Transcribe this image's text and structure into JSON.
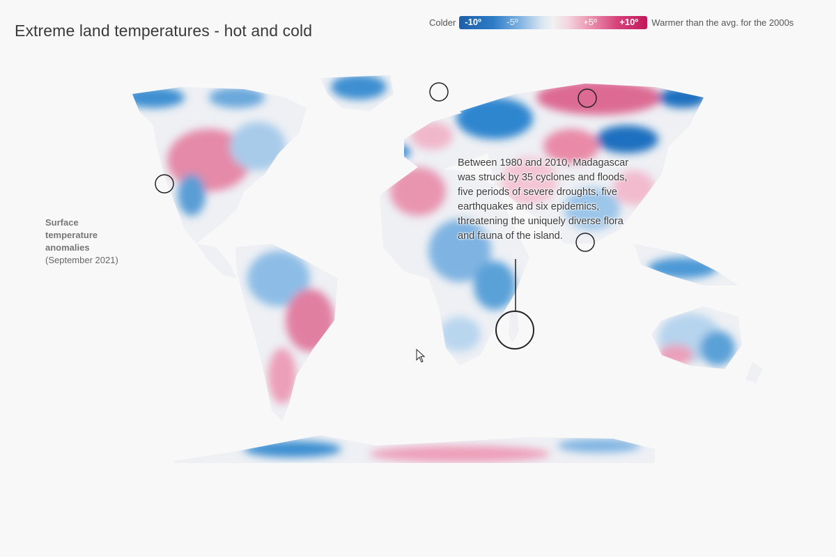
{
  "title": "Extreme land temperatures - hot and cold",
  "legend": {
    "colder_label": "Colder",
    "warmer_label": "Warmer than the avg. for the 2000s",
    "ticks": [
      "-10º",
      "-5º",
      "+5º",
      "+10º"
    ],
    "colors": {
      "cold_extreme": "#1f5fa8",
      "cold": "#2c7bc7",
      "neutral": "#f1f1f1",
      "warm": "#ea91ae",
      "warm_extreme": "#c2185b"
    }
  },
  "side_label": {
    "bold": "Surface temperature anomalies",
    "date": "(September 2021)"
  },
  "annotation": {
    "text": "Between 1980 and 2010, Madagascar was struck by 35 cyclones and floods, five periods of severe droughts, five earthquakes and six epidemics, threatening the uniquely diverse flora and fauna of the island."
  },
  "map": {
    "projection": "equirectangular",
    "highlighted_location": "Madagascar",
    "icons": [
      "location-circle-icon",
      "cursor-arrow-icon"
    ]
  }
}
